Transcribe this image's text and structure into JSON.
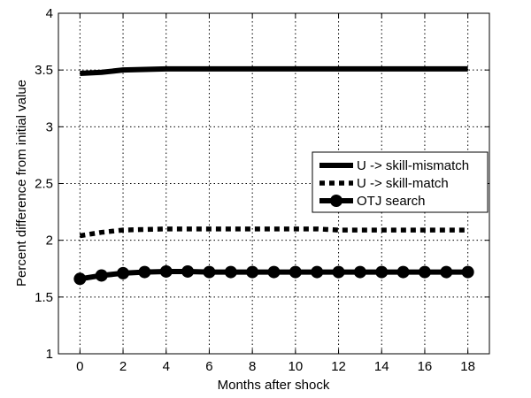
{
  "chart_data": {
    "type": "line",
    "xlabel": "Months after shock",
    "ylabel": "Percent difference from initial value",
    "xlim": [
      -1,
      19
    ],
    "ylim": [
      1,
      4
    ],
    "xticks": [
      0,
      2,
      4,
      6,
      8,
      10,
      12,
      14,
      16,
      18
    ],
    "yticks": [
      1,
      1.5,
      2,
      2.5,
      3,
      3.5,
      4
    ],
    "ytick_labels": [
      "1",
      "1.5",
      "2",
      "2.5",
      "3",
      "3.5",
      "4"
    ],
    "grid": true,
    "legend_position": "right",
    "x": [
      0,
      1,
      2,
      3,
      4,
      5,
      6,
      7,
      8,
      9,
      10,
      11,
      12,
      13,
      14,
      15,
      16,
      17,
      18
    ],
    "series": [
      {
        "name": "U -> skill-mismatch",
        "style": "solid",
        "values": [
          3.47,
          3.48,
          3.5,
          3.505,
          3.51,
          3.51,
          3.51,
          3.51,
          3.51,
          3.51,
          3.51,
          3.51,
          3.51,
          3.51,
          3.51,
          3.51,
          3.51,
          3.51,
          3.51
        ]
      },
      {
        "name": "U -> skill-match",
        "style": "dotted",
        "values": [
          2.04,
          2.07,
          2.09,
          2.095,
          2.1,
          2.1,
          2.1,
          2.1,
          2.1,
          2.1,
          2.1,
          2.1,
          2.09,
          2.09,
          2.09,
          2.09,
          2.09,
          2.09,
          2.09
        ]
      },
      {
        "name": "OTJ search",
        "style": "solid-marker",
        "values": [
          1.66,
          1.69,
          1.71,
          1.72,
          1.725,
          1.725,
          1.72,
          1.72,
          1.72,
          1.72,
          1.72,
          1.72,
          1.72,
          1.72,
          1.72,
          1.72,
          1.72,
          1.72,
          1.72
        ]
      }
    ],
    "colors": {
      "line": "#000000",
      "grid": "#000000",
      "background": "#ffffff"
    }
  }
}
